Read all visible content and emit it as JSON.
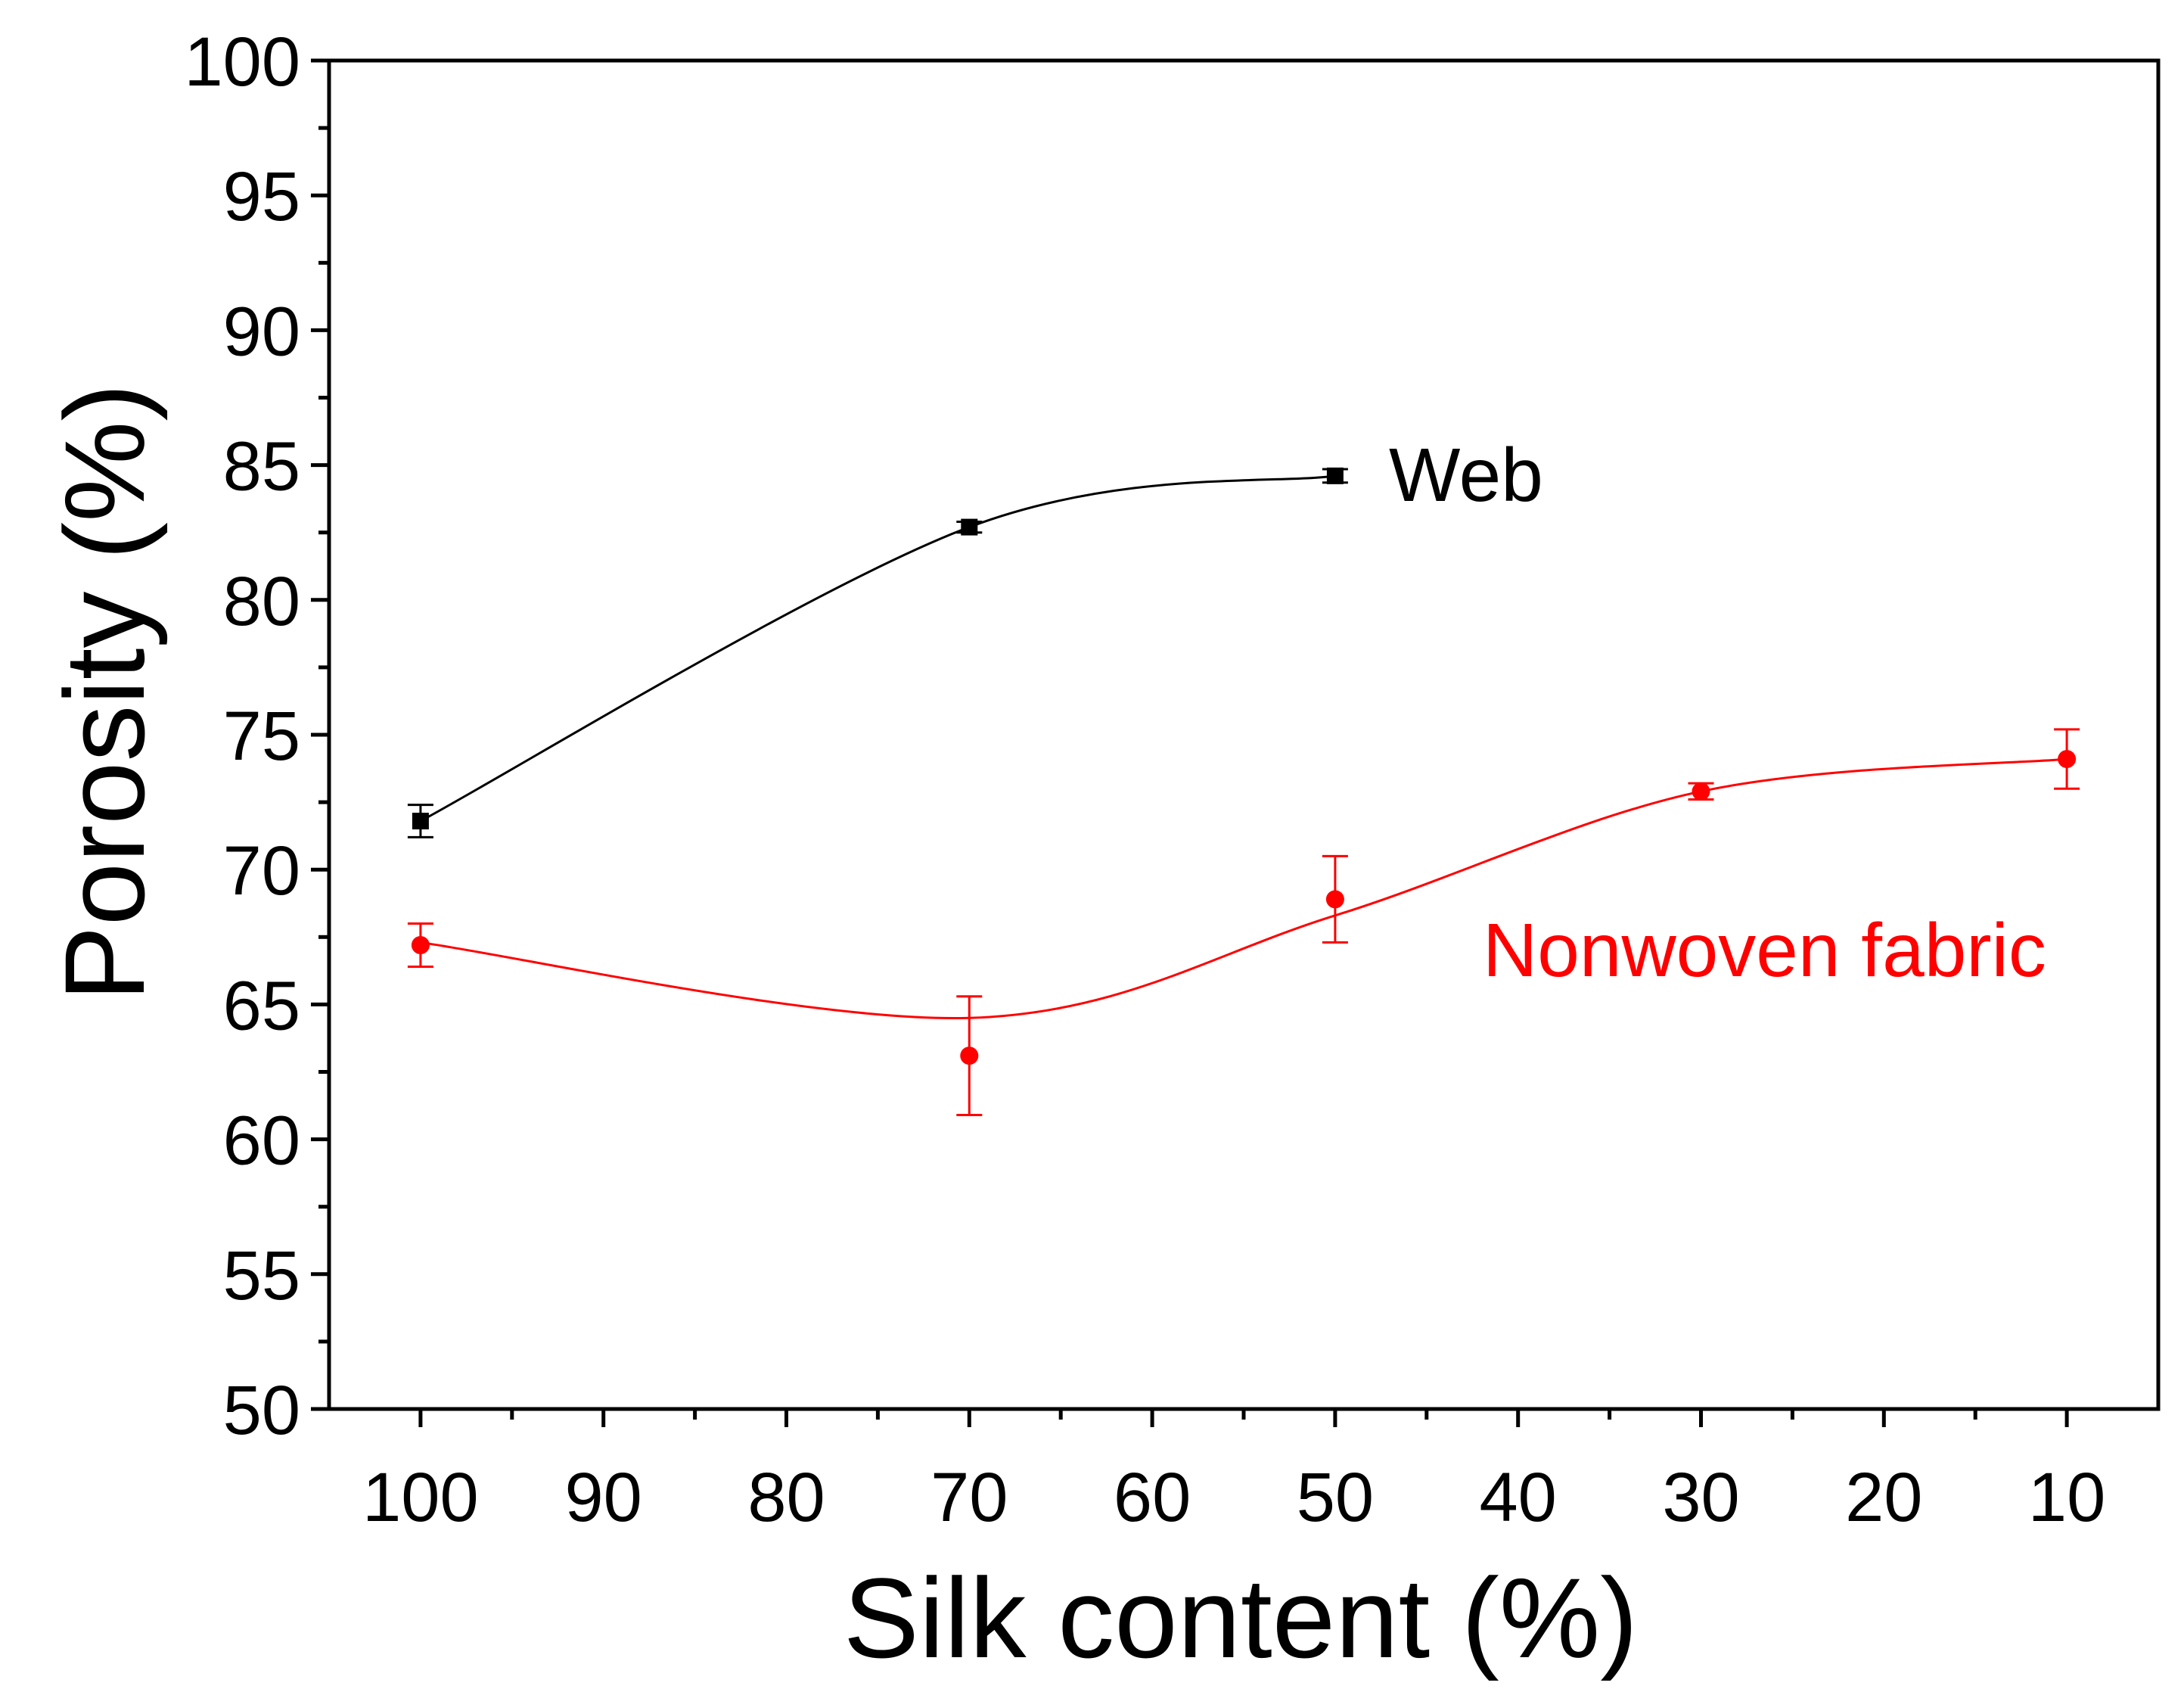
{
  "colors": {
    "web": "#000000",
    "nonwoven": "#ff0000",
    "axis": "#000000",
    "background": "#ffffff"
  },
  "chart_data": {
    "type": "line",
    "title": "",
    "xlabel": "Silk content (%)",
    "ylabel": "Porosity (%)",
    "xlim": [
      105,
      5
    ],
    "ylim": [
      50,
      100
    ],
    "x_reversed": true,
    "grid": false,
    "legend": "none (series labeled directly on the plot)",
    "xticks": [
      100,
      90,
      80,
      70,
      60,
      50,
      40,
      30,
      20,
      10
    ],
    "xtick_labels": [
      "100",
      "90",
      "80",
      "70",
      "60",
      "50",
      "40",
      "30",
      "20",
      "10"
    ],
    "yticks": [
      50,
      55,
      60,
      65,
      70,
      75,
      80,
      85,
      90,
      95,
      100
    ],
    "ytick_labels": [
      "50",
      "55",
      "60",
      "65",
      "70",
      "75",
      "80",
      "85",
      "90",
      "95",
      "100"
    ],
    "series": [
      {
        "name": "Web",
        "color": "#000000",
        "marker": "square",
        "x": [
          100,
          70,
          50
        ],
        "y": [
          71.8,
          82.7,
          84.6
        ],
        "error": [
          0.6,
          0.2,
          0.25
        ]
      },
      {
        "name": "Nonwoven fabric",
        "color": "#ff0000",
        "marker": "circle",
        "x": [
          100,
          70,
          50,
          30,
          10
        ],
        "y": [
          67.2,
          63.1,
          68.9,
          72.9,
          74.1
        ],
        "error": [
          0.8,
          2.2,
          1.6,
          0.3,
          1.1
        ],
        "fit_curve": [
          [
            100,
            67.3
          ],
          [
            70,
            64.5
          ],
          [
            50,
            68.3
          ],
          [
            30,
            72.9
          ],
          [
            10,
            74.1
          ]
        ]
      }
    ]
  }
}
